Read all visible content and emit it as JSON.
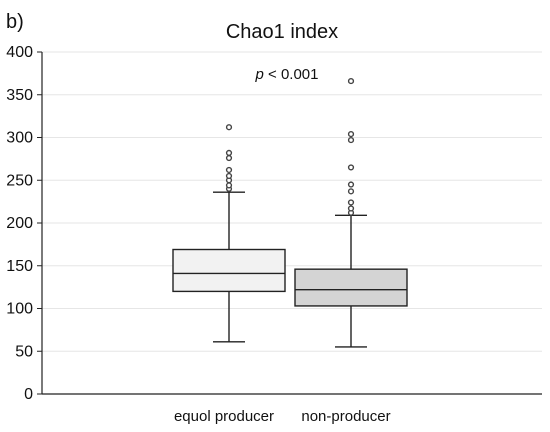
{
  "panel_label": "b)",
  "chart_data": {
    "type": "box",
    "title": "Chao1 index",
    "xlabel": "",
    "ylabel": "",
    "ylim": [
      0,
      400
    ],
    "yticks": [
      0,
      50,
      100,
      150,
      200,
      250,
      300,
      350,
      400
    ],
    "grid": true,
    "annotation": {
      "italic": "p",
      "text": " < 0.001"
    },
    "categories": [
      "equol producer",
      "non-producer"
    ],
    "boxes": [
      {
        "category": "equol producer",
        "fill": "#f2f2f2",
        "whisker_low": 61,
        "q1": 120,
        "median": 141,
        "q3": 169,
        "whisker_high": 236,
        "outliers": [
          240,
          244,
          250,
          255,
          262,
          276,
          282,
          312
        ]
      },
      {
        "category": "non-producer",
        "fill": "#d4d4d4",
        "whisker_low": 55,
        "q1": 103,
        "median": 122,
        "q3": 146,
        "whisker_high": 209,
        "outliers": [
          212,
          217,
          224,
          237,
          245,
          265,
          297,
          304,
          366
        ]
      }
    ]
  }
}
